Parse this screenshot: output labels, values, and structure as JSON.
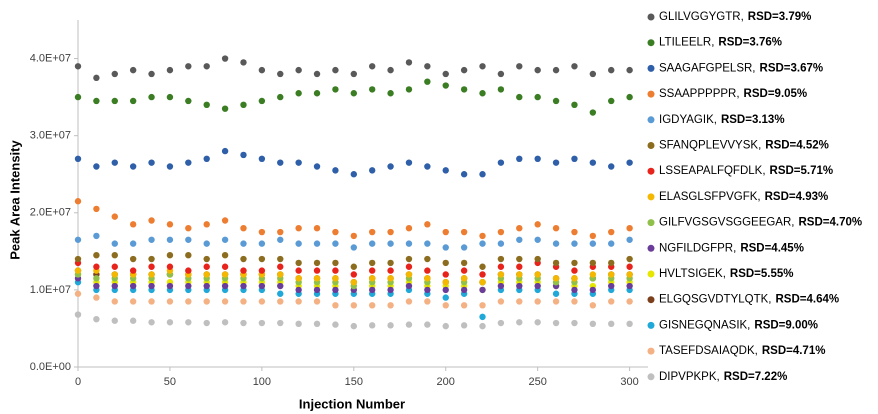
{
  "chart_data": {
    "type": "scatter",
    "x_label": "Injection Number",
    "y_label": "Peak Area Intensity",
    "xlim": [
      0,
      310
    ],
    "ylim": [
      0,
      45000000.0
    ],
    "xticks": [
      0,
      50,
      100,
      150,
      200,
      250,
      300
    ],
    "yticks": [
      {
        "value": 0,
        "label": "0.0E+00"
      },
      {
        "value": 10000000.0,
        "label": "1.0E+07"
      },
      {
        "value": 20000000.0,
        "label": "2.0E+07"
      },
      {
        "value": 30000000.0,
        "label": "3.0E+07"
      },
      {
        "value": 40000000.0,
        "label": "4.0E+07"
      }
    ],
    "grid": false,
    "legend": "right",
    "x": [
      0,
      10,
      20,
      30,
      40,
      50,
      60,
      70,
      80,
      90,
      100,
      110,
      120,
      130,
      140,
      150,
      160,
      170,
      180,
      190,
      200,
      210,
      220,
      230,
      240,
      250,
      260,
      270,
      280,
      290,
      300
    ],
    "series": [
      {
        "name": "GLILVGGYGTR,",
        "rsd": "RSD=3.79%",
        "color": "#595959",
        "values": [
          39000000.0,
          37500000.0,
          38000000.0,
          38500000.0,
          38000000.0,
          38500000.0,
          39000000.0,
          39000000.0,
          40000000.0,
          39500000.0,
          38500000.0,
          38000000.0,
          38500000.0,
          38000000.0,
          38500000.0,
          38000000.0,
          39000000.0,
          38500000.0,
          39500000.0,
          39000000.0,
          38000000.0,
          38500000.0,
          39000000.0,
          38000000.0,
          39000000.0,
          38500000.0,
          38500000.0,
          39000000.0,
          38000000.0,
          38500000.0,
          38500000.0
        ]
      },
      {
        "name": "LTILEELR,",
        "rsd": "RSD=3.76%",
        "color": "#3a7d22",
        "values": [
          35000000.0,
          34500000.0,
          34500000.0,
          34500000.0,
          35000000.0,
          35000000.0,
          34500000.0,
          34000000.0,
          33500000.0,
          34000000.0,
          34500000.0,
          35000000.0,
          35500000.0,
          35500000.0,
          36000000.0,
          35500000.0,
          36000000.0,
          35500000.0,
          36000000.0,
          37000000.0,
          36500000.0,
          36000000.0,
          35500000.0,
          36000000.0,
          35000000.0,
          35000000.0,
          34500000.0,
          34000000.0,
          33000000.0,
          34500000.0,
          35000000.0
        ]
      },
      {
        "name": "SAAGAFGPELSR,",
        "rsd": "RSD=3.67%",
        "color": "#2e5fa8",
        "values": [
          27000000.0,
          26000000.0,
          26500000.0,
          26000000.0,
          26500000.0,
          26000000.0,
          26500000.0,
          27000000.0,
          28000000.0,
          27500000.0,
          27000000.0,
          26500000.0,
          26500000.0,
          26000000.0,
          25500000.0,
          25000000.0,
          25500000.0,
          26000000.0,
          26500000.0,
          26000000.0,
          25500000.0,
          25000000.0,
          25000000.0,
          26500000.0,
          27000000.0,
          27000000.0,
          26500000.0,
          27000000.0,
          26500000.0,
          26000000.0,
          26500000.0
        ]
      },
      {
        "name": "SSAAPPPPPR,",
        "rsd": "RSD=9.05%",
        "color": "#ed7d31",
        "values": [
          21500000.0,
          20500000.0,
          19500000.0,
          18500000.0,
          19000000.0,
          18500000.0,
          18000000.0,
          18500000.0,
          19000000.0,
          18000000.0,
          17500000.0,
          17500000.0,
          18000000.0,
          18000000.0,
          17500000.0,
          17000000.0,
          17500000.0,
          17500000.0,
          18000000.0,
          18500000.0,
          17500000.0,
          17500000.0,
          17000000.0,
          17500000.0,
          18000000.0,
          18500000.0,
          18000000.0,
          17500000.0,
          17000000.0,
          17500000.0,
          18000000.0
        ]
      },
      {
        "name": "IGDYAGIK,",
        "rsd": "RSD=3.13%",
        "color": "#5b9bd5",
        "values": [
          16500000.0,
          17000000.0,
          16000000.0,
          16000000.0,
          16500000.0,
          16500000.0,
          16500000.0,
          16000000.0,
          16500000.0,
          16000000.0,
          16000000.0,
          16500000.0,
          16000000.0,
          16000000.0,
          16000000.0,
          15500000.0,
          16000000.0,
          16000000.0,
          16000000.0,
          16000000.0,
          15500000.0,
          15500000.0,
          16000000.0,
          16000000.0,
          16500000.0,
          16500000.0,
          16000000.0,
          16000000.0,
          16000000.0,
          16000000.0,
          16500000.0
        ]
      },
      {
        "name": "SFANQPLEVVYSK,",
        "rsd": "RSD=4.52%",
        "color": "#8c6d1f",
        "values": [
          14000000.0,
          14500000.0,
          14500000.0,
          14000000.0,
          14000000.0,
          14500000.0,
          14500000.0,
          14000000.0,
          14500000.0,
          14000000.0,
          14000000.0,
          14000000.0,
          13500000.0,
          13500000.0,
          13500000.0,
          13000000.0,
          13500000.0,
          13500000.0,
          14000000.0,
          14000000.0,
          13500000.0,
          13500000.0,
          13000000.0,
          14000000.0,
          14000000.0,
          14000000.0,
          13500000.0,
          13500000.0,
          13500000.0,
          13500000.0,
          14000000.0
        ]
      },
      {
        "name": "LSSEAPALFQFDLK,",
        "rsd": "RSD=5.71%",
        "color": "#e8231c",
        "values": [
          13500000.0,
          13000000.0,
          13000000.0,
          12500000.0,
          13000000.0,
          13000000.0,
          12500000.0,
          13000000.0,
          13000000.0,
          12500000.0,
          12500000.0,
          13000000.0,
          12500000.0,
          12500000.0,
          12500000.0,
          12000000.0,
          12500000.0,
          12500000.0,
          13000000.0,
          12500000.0,
          12000000.0,
          12500000.0,
          12000000.0,
          13000000.0,
          13000000.0,
          13500000.0,
          13000000.0,
          12500000.0,
          13000000.0,
          13000000.0,
          13000000.0
        ]
      },
      {
        "name": "ELASGLSFPVGFK,",
        "rsd": "RSD=4.93%",
        "color": "#f5b800",
        "values": [
          12500000.0,
          12500000.0,
          12000000.0,
          12000000.0,
          12000000.0,
          12500000.0,
          12000000.0,
          12000000.0,
          12000000.0,
          12000000.0,
          12000000.0,
          12000000.0,
          11500000.0,
          11500000.0,
          11500000.0,
          11000000.0,
          11500000.0,
          11500000.0,
          12000000.0,
          11500000.0,
          11000000.0,
          11500000.0,
          11000000.0,
          12000000.0,
          12000000.0,
          12000000.0,
          11500000.0,
          11500000.0,
          12000000.0,
          12000000.0,
          12000000.0
        ]
      },
      {
        "name": "GILFVGSGVSGGEEGAR,",
        "rsd": "RSD=4.70%",
        "color": "#8fc04a",
        "values": [
          12000000.0,
          11500000.0,
          11500000.0,
          11500000.0,
          11500000.0,
          12000000.0,
          11500000.0,
          11500000.0,
          11500000.0,
          11500000.0,
          11500000.0,
          11500000.0,
          11000000.0,
          11000000.0,
          11000000.0,
          10500000.0,
          11000000.0,
          11000000.0,
          11500000.0,
          11000000.0,
          11000000.0,
          11000000.0,
          11000000.0,
          11500000.0,
          11500000.0,
          11500000.0,
          11000000.0,
          11000000.0,
          11500000.0,
          11500000.0,
          11500000.0
        ]
      },
      {
        "name": "NGFILDGFPR,",
        "rsd": "RSD=4.45%",
        "color": "#6a3d9a",
        "values": [
          11500000.0,
          10500000.0,
          10500000.0,
          10500000.0,
          10500000.0,
          10500000.0,
          10500000.0,
          10500000.0,
          10500000.0,
          10500000.0,
          10500000.0,
          10500000.0,
          10000000.0,
          10000000.0,
          10000000.0,
          10000000.0,
          10000000.0,
          10000000.0,
          10500000.0,
          10000000.0,
          10000000.0,
          10000000.0,
          10000000.0,
          10500000.0,
          10500000.0,
          10500000.0,
          10500000.0,
          10000000.0,
          10000000.0,
          10500000.0,
          10500000.0
        ]
      },
      {
        "name": "HVLTSIGEK,",
        "rsd": "RSD=5.55%",
        "color": "#e6e600",
        "values": [
          12000000.0,
          11000000.0,
          11000000.0,
          11000000.0,
          11000000.0,
          11000000.0,
          11000000.0,
          11000000.0,
          11000000.0,
          11000000.0,
          11000000.0,
          11000000.0,
          10500000.0,
          10500000.0,
          10500000.0,
          10000000.0,
          10500000.0,
          10500000.0,
          11000000.0,
          10500000.0,
          10500000.0,
          10500000.0,
          10000000.0,
          11000000.0,
          11000000.0,
          11000000.0,
          10500000.0,
          10500000.0,
          10500000.0,
          11000000.0,
          11000000.0
        ]
      },
      {
        "name": "ELGQSGVDTYLQTK,",
        "rsd": "RSD=4.64%",
        "color": "#7b3f1c",
        "values": [
          12500000.0,
          12000000.0,
          12000000.0,
          12000000.0,
          12000000.0,
          12000000.0,
          12000000.0,
          12000000.0,
          12000000.0,
          12000000.0,
          12000000.0,
          12000000.0,
          11500000.0,
          11500000.0,
          11500000.0,
          11000000.0,
          11500000.0,
          11500000.0,
          12000000.0,
          11500000.0,
          11000000.0,
          11500000.0,
          11000000.0,
          12000000.0,
          12000000.0,
          12000000.0,
          11500000.0,
          11500000.0,
          11500000.0,
          12000000.0,
          12000000.0
        ]
      },
      {
        "name": "GISNEGQNASIK,",
        "rsd": "RSD=9.00%",
        "color": "#1fa8d8",
        "values": [
          11000000.0,
          10000000.0,
          10000000.0,
          10000000.0,
          10000000.0,
          10000000.0,
          10000000.0,
          10000000.0,
          10000000.0,
          10000000.0,
          10000000.0,
          9500000.0,
          9500000.0,
          9500000.0,
          9500000.0,
          9500000.0,
          9500000.0,
          9500000.0,
          10000000.0,
          9500000.0,
          9000000.0,
          9500000.0,
          6500000.0,
          10000000.0,
          10000000.0,
          10000000.0,
          9500000.0,
          9500000.0,
          9500000.0,
          10000000.0,
          10000000.0
        ]
      },
      {
        "name": "TASEFDSAIAQDK,",
        "rsd": "RSD=4.71%",
        "color": "#f4b183",
        "values": [
          9500000.0,
          9000000.0,
          8500000.0,
          8500000.0,
          8500000.0,
          8500000.0,
          8500000.0,
          8500000.0,
          8500000.0,
          8500000.0,
          8500000.0,
          8500000.0,
          8500000.0,
          8500000.0,
          8000000.0,
          8000000.0,
          8000000.0,
          8000000.0,
          8500000.0,
          8500000.0,
          8000000.0,
          8000000.0,
          8000000.0,
          8500000.0,
          8500000.0,
          8500000.0,
          8500000.0,
          8500000.0,
          8000000.0,
          8500000.0,
          8500000.0
        ]
      },
      {
        "name": "DIPVPKPK,",
        "rsd": "RSD=7.22%",
        "color": "#bfbfbf",
        "values": [
          6800000.0,
          6200000.0,
          6000000.0,
          6000000.0,
          5800000.0,
          5800000.0,
          5800000.0,
          5700000.0,
          5800000.0,
          5700000.0,
          5700000.0,
          5700000.0,
          5600000.0,
          5600000.0,
          5500000.0,
          5300000.0,
          5400000.0,
          5400000.0,
          5500000.0,
          5500000.0,
          5300000.0,
          5400000.0,
          5300000.0,
          5700000.0,
          5800000.0,
          5800000.0,
          5700000.0,
          5700000.0,
          5600000.0,
          5600000.0,
          5600000.0
        ]
      }
    ]
  }
}
